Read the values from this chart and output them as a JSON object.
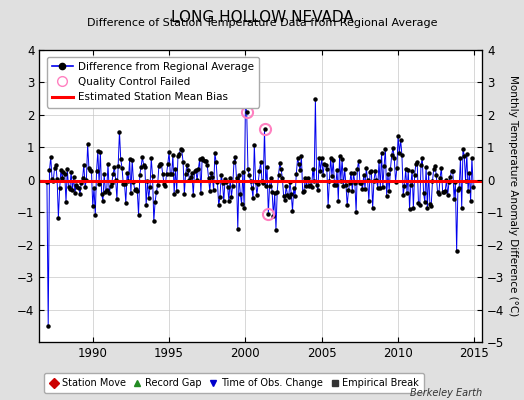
{
  "title": "LONG HOLLOW NEVADA",
  "subtitle": "Difference of Station Temperature Data from Regional Average",
  "ylabel": "Monthly Temperature Anomaly Difference (°C)",
  "bias": -0.05,
  "ylim": [
    -5,
    4
  ],
  "xlim": [
    1986.5,
    2015.5
  ],
  "xticks": [
    1990,
    1995,
    2000,
    2005,
    2010,
    2015
  ],
  "yticks_left": [
    -4,
    -3,
    -2,
    -1,
    0,
    1,
    2,
    3,
    4
  ],
  "yticks_right": [
    -5,
    -4,
    -3,
    -2,
    -1,
    0,
    1,
    2,
    3,
    4
  ],
  "bg_color": "#e0e0e0",
  "plot_bg_color": "#ffffff",
  "line_color": "#0000ee",
  "bias_color": "#ff0000",
  "qc_color": "#ff80c0",
  "seed": 99,
  "n_years": 28,
  "start_year": 1987,
  "bottom_legend": [
    {
      "label": "Station Move",
      "color": "#cc0000",
      "marker": "D"
    },
    {
      "label": "Record Gap",
      "color": "#228B22",
      "marker": "^"
    },
    {
      "label": "Time of Obs. Change",
      "color": "#0000cc",
      "marker": "v"
    },
    {
      "label": "Empirical Break",
      "color": "#333333",
      "marker": "s"
    }
  ],
  "berkeley_earth_text": "Berkeley Earth"
}
